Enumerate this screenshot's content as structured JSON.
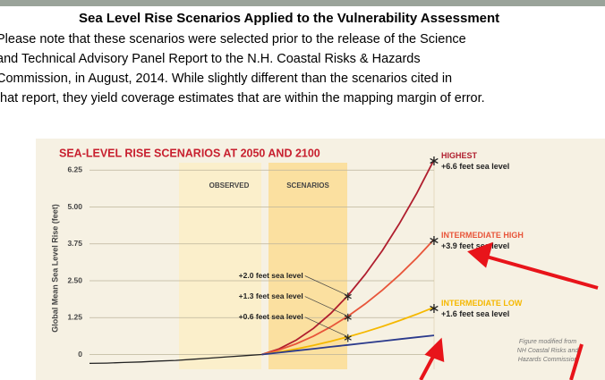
{
  "heading": "Sea Level Rise Scenarios Applied to the Vulnerability Assessment",
  "paragraph_lines": [
    "Please note that these scenarios were selected prior to the release of the Science",
    "and Technical Advisory Panel Report to the N.H. Coastal Risks & Hazards",
    "Commission, in August, 2014. While slightly different than the scenarios cited in",
    "that report, they yield coverage estimates that are within the mapping margin of error."
  ],
  "chart_data": {
    "type": "line",
    "title": "SEA-LEVEL RISE SCENARIOS AT 2050 AND 2100",
    "y_label": "Global Mean Sea Level Rise (feet)",
    "regions": [
      "OBSERVED",
      "SCENARIOS"
    ],
    "categories": [
      null,
      null,
      null,
      null,
      null,
      null,
      null,
      null,
      null,
      null,
      null,
      null,
      null,
      null,
      null,
      null,
      null,
      null,
      null,
      null,
      null
    ],
    "ylim": [
      -0.5,
      6.5
    ],
    "yticks": [
      0,
      1.25,
      {
        "value": 2.5,
        "label": "2.50"
      },
      3.75,
      {
        "value": 5,
        "label": "5.00"
      },
      6.25
    ],
    "grid": true,
    "series": [
      {
        "color": "#222222",
        "values": [
          -0.3,
          -0.29,
          -0.27,
          -0.25,
          -0.22,
          -0.2,
          -0.16,
          -0.12,
          -0.08,
          -0.04,
          0,
          null,
          null,
          null,
          null,
          null,
          null,
          null,
          null,
          null,
          null
        ]
      },
      {
        "name": "HIGHEST",
        "end_label": "+6.6 feet sea level",
        "color": "#b01e2e",
        "values": [
          null,
          null,
          null,
          null,
          null,
          null,
          null,
          null,
          null,
          null,
          0,
          0.192,
          0.488,
          0.888,
          1.392,
          2.0,
          2.712,
          3.528,
          4.448,
          5.472,
          6.6
        ]
      },
      {
        "name": "INTERMEDIATE HIGH",
        "end_label": "+3.9 feet sea level",
        "color": "#e8553a",
        "values": [
          null,
          null,
          null,
          null,
          null,
          null,
          null,
          null,
          null,
          null,
          0,
          0.156,
          0.364,
          0.624,
          0.936,
          1.3,
          1.716,
          2.184,
          2.704,
          3.276,
          3.9
        ]
      },
      {
        "name": "INTERMEDIATE LOW",
        "end_label": "+1.6 feet sea level",
        "color": "#f5b800",
        "values": [
          null,
          null,
          null,
          null,
          null,
          null,
          null,
          null,
          null,
          null,
          0,
          0.088,
          0.192,
          0.312,
          0.448,
          0.6,
          0.768,
          0.952,
          1.152,
          1.368,
          1.6
        ]
      },
      {
        "color": "#2b3a8c",
        "values": [
          null,
          null,
          null,
          null,
          null,
          null,
          null,
          null,
          null,
          null,
          0,
          0.065,
          0.13,
          0.195,
          0.26,
          0.325,
          0.39,
          0.455,
          0.52,
          0.585,
          0.65
        ]
      }
    ],
    "annotations": [
      {
        "text": "+2.0 feet sea level",
        "series": 1,
        "index": 15
      },
      {
        "text": "+1.3 feet sea level",
        "series": 2,
        "index": 15
      },
      {
        "text": "+0.6 feet sea level",
        "series": 3,
        "index": 15
      }
    ],
    "source_note": [
      "Figure modified from",
      "NH Coastal Risks and",
      "Hazards Commission"
    ]
  }
}
